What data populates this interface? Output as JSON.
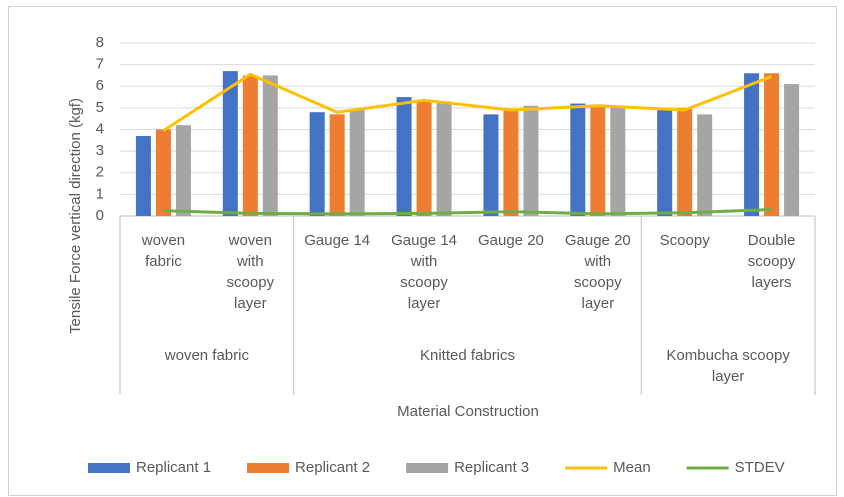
{
  "chart_data": {
    "type": "bar",
    "y_label": "Tensile Force vertical direction  (kgf)",
    "x_label": "Material Construction",
    "categories": [
      "woven fabric",
      "woven with scoopy layer",
      "Gauge 14",
      "Gauge 14 with scoopy layer",
      "Gauge 20",
      "Gauge 20 with scoopy layer",
      "Scoopy",
      "Double scoopy layers"
    ],
    "groups": [
      {
        "label": "woven fabric",
        "span": 2
      },
      {
        "label": "Knitted fabrics",
        "span": 4
      },
      {
        "label": "Kombucha scoopy layer",
        "span": 2
      }
    ],
    "series": [
      {
        "name": "Replicant 1",
        "color": "#4472c4",
        "kind": "bar",
        "values": [
          3.7,
          6.7,
          4.8,
          5.5,
          4.7,
          5.2,
          4.9,
          6.6
        ]
      },
      {
        "name": "Replicant 2",
        "color": "#ed7d31",
        "kind": "bar",
        "values": [
          4.0,
          6.5,
          4.7,
          5.3,
          4.9,
          5.1,
          5.0,
          6.6
        ]
      },
      {
        "name": "Replicant 3",
        "color": "#a5a5a5",
        "kind": "bar",
        "values": [
          4.2,
          6.5,
          4.9,
          5.3,
          5.1,
          5.0,
          4.7,
          6.1
        ]
      },
      {
        "name": "Mean",
        "color": "#ffc000",
        "kind": "line",
        "values": [
          3.95,
          6.55,
          4.8,
          5.35,
          4.9,
          5.1,
          4.9,
          6.45
        ]
      },
      {
        "name": "STDEV",
        "color": "#70ad47",
        "kind": "line",
        "values": [
          0.25,
          0.12,
          0.1,
          0.12,
          0.2,
          0.1,
          0.15,
          0.3
        ]
      }
    ],
    "ylim": [
      0,
      8
    ],
    "yticks": [
      0,
      1,
      2,
      3,
      4,
      5,
      6,
      7,
      8
    ],
    "grid": true,
    "legend": "bottom"
  }
}
